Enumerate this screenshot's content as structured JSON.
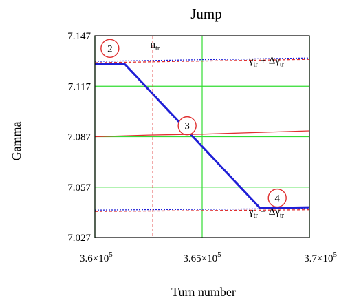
{
  "chart_data": {
    "type": "line",
    "title": "Jump",
    "xlabel": "Turn number",
    "ylabel": "Gamma",
    "xlim": [
      360000,
      370000
    ],
    "ylim": [
      7.027,
      7.147
    ],
    "grid": true,
    "xticks": [
      {
        "value": 360000,
        "mantissa": "3.6",
        "times": "×10",
        "exp": "5"
      },
      {
        "value": 365000,
        "mantissa": "3.65",
        "times": "×10",
        "exp": "5"
      },
      {
        "value": 370000,
        "mantissa": "3.7",
        "times": "×10",
        "exp": "5"
      }
    ],
    "yticks": [
      {
        "value": 7.027,
        "label": "7.027"
      },
      {
        "value": 7.057,
        "label": "7.057"
      },
      {
        "value": 7.087,
        "label": "7.087"
      },
      {
        "value": 7.117,
        "label": "7.117"
      },
      {
        "value": 7.147,
        "label": "7.147"
      }
    ],
    "gridlines_x": [
      360000,
      365000,
      370000
    ],
    "gridlines_y": [
      7.057,
      7.087,
      7.117
    ],
    "series": [
      {
        "role": "gamma",
        "color": "#1f1fd6",
        "style": "solid-thick",
        "x": [
          360000,
          361400,
          367700,
          370000
        ],
        "y": [
          7.13,
          7.13,
          7.0445,
          7.045
        ]
      },
      {
        "role": "gamma-transition",
        "color": "#e03030",
        "style": "solid",
        "x": [
          360000,
          362500,
          365000,
          367500,
          370000
        ],
        "y": [
          7.087,
          7.088,
          7.0885,
          7.0895,
          7.0905
        ]
      },
      {
        "role": "upper-bound",
        "color": "#e03030",
        "style": "dashed",
        "x": [
          360000,
          370000
        ],
        "y": [
          7.131,
          7.133
        ]
      },
      {
        "role": "upper-bound-alt",
        "color": "#1f1fd6",
        "style": "dotted",
        "x": [
          360000,
          370000
        ],
        "y": [
          7.1318,
          7.1338
        ]
      },
      {
        "role": "lower-bound",
        "color": "#e03030",
        "style": "dashed",
        "x": [
          360000,
          370000
        ],
        "y": [
          7.0425,
          7.0435
        ]
      },
      {
        "role": "lower-bound-alt",
        "color": "#1f1fd6",
        "style": "dotted",
        "x": [
          360000,
          370000
        ],
        "y": [
          7.0433,
          7.0443
        ]
      }
    ],
    "vlines": [
      {
        "x": 362700,
        "color": "#e03030",
        "style": "dashed"
      }
    ],
    "annotations": [
      {
        "text": "n",
        "sub": "tr",
        "x": 362800,
        "y": 7.14
      },
      {
        "text": "γ",
        "sub": "tr",
        "mid": " + Δγ",
        "sub2": "tr",
        "x": 368000,
        "y": 7.1305
      },
      {
        "text": "γ",
        "sub": "tr",
        "mid": " − Δγ",
        "sub2": "tr",
        "x": 368000,
        "y": 7.0405
      }
    ],
    "markers": [
      {
        "label": "2",
        "x": 360700,
        "y": 7.1395
      },
      {
        "label": "3",
        "x": 364300,
        "y": 7.0935
      },
      {
        "label": "4",
        "x": 368500,
        "y": 7.0505
      }
    ]
  }
}
